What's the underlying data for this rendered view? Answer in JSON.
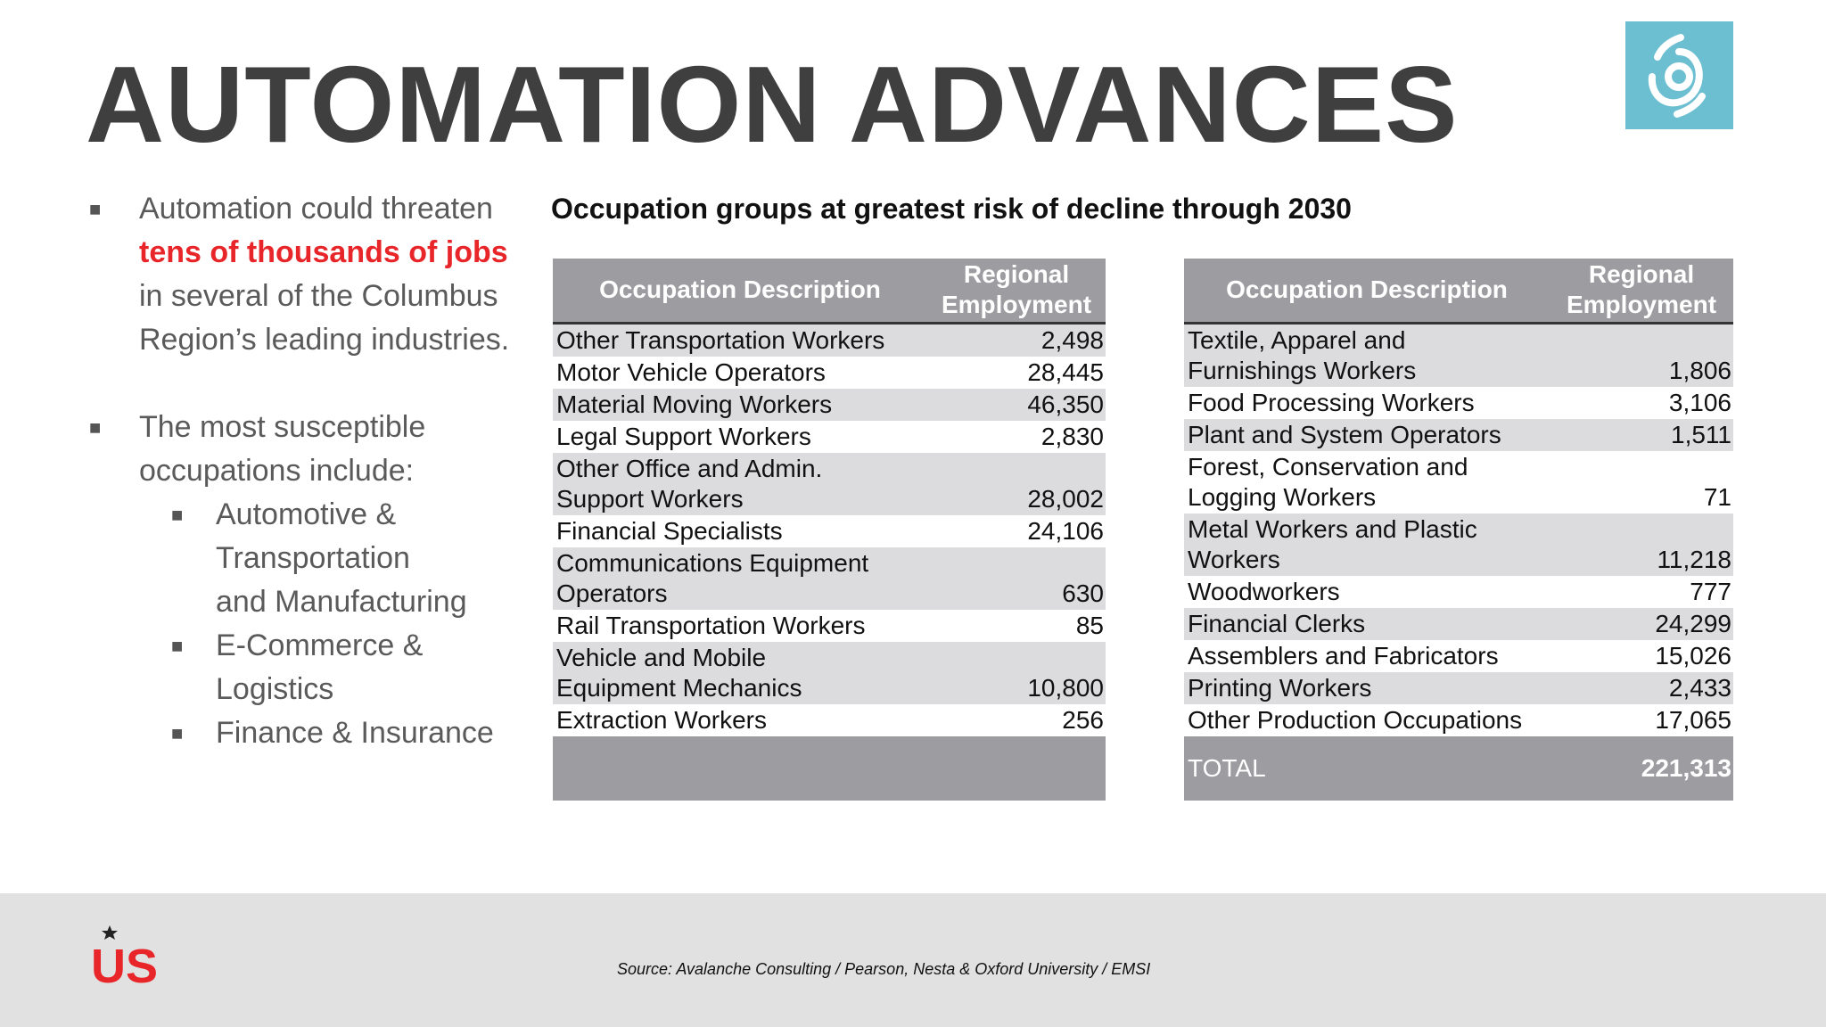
{
  "title": "AUTOMATION ADVANCES",
  "bullets": {
    "first": {
      "pre": "Automation could threaten",
      "highlight": "tens of thousands of jobs",
      "post_line1": "in several of the Columbus",
      "post_line2": "Region’s leading industries."
    },
    "second": {
      "line1": "The most susceptible",
      "line2": "occupations include:"
    },
    "sub_items": [
      {
        "lines": [
          "Automotive &",
          "Transportation",
          "and Manufacturing"
        ]
      },
      {
        "lines": [
          "E-Commerce &",
          "Logistics"
        ]
      },
      {
        "lines": [
          "Finance & Insurance"
        ]
      }
    ]
  },
  "table_title": "Occupation groups at greatest risk of decline through 2030",
  "table_headers": {
    "occupation": "Occupation Description",
    "employment_line1": "Regional",
    "employment_line2": "Employment"
  },
  "left_table": [
    {
      "lines": [
        "Other Transportation Workers"
      ],
      "value": "2,498"
    },
    {
      "lines": [
        "Motor Vehicle Operators"
      ],
      "value": "28,445"
    },
    {
      "lines": [
        "Material Moving Workers"
      ],
      "value": "46,350"
    },
    {
      "lines": [
        "Legal Support Workers"
      ],
      "value": "2,830"
    },
    {
      "lines": [
        "Other Office and Admin.",
        "Support Workers"
      ],
      "value": "28,002"
    },
    {
      "lines": [
        "Financial Specialists"
      ],
      "value": "24,106"
    },
    {
      "lines": [
        "Communications Equipment",
        "Operators"
      ],
      "value": "630"
    },
    {
      "lines": [
        "Rail Transportation Workers"
      ],
      "value": "85"
    },
    {
      "lines": [
        "Vehicle and Mobile",
        "Equipment Mechanics"
      ],
      "value": "10,800"
    },
    {
      "lines": [
        "Extraction Workers"
      ],
      "value": "256"
    }
  ],
  "right_table": [
    {
      "lines": [
        "Textile, Apparel and",
        "Furnishings Workers"
      ],
      "value": "1,806"
    },
    {
      "lines": [
        "Food Processing Workers"
      ],
      "value": "3,106"
    },
    {
      "lines": [
        "Plant and System Operators"
      ],
      "value": "1,511"
    },
    {
      "lines": [
        "Forest, Conservation and",
        "Logging Workers"
      ],
      "value": "71"
    },
    {
      "lines": [
        "Metal Workers and Plastic",
        "Workers"
      ],
      "value": "11,218"
    },
    {
      "lines": [
        "Woodworkers"
      ],
      "value": "777"
    },
    {
      "lines": [
        "Financial Clerks"
      ],
      "value": "24,299"
    },
    {
      "lines": [
        "Assemblers and Fabricators"
      ],
      "value": "15,026"
    },
    {
      "lines": [
        "Printing Workers"
      ],
      "value": "2,433"
    },
    {
      "lines": [
        "Other Production Occupations"
      ],
      "value": "17,065"
    }
  ],
  "total": {
    "label": "TOTAL",
    "value": "221,313"
  },
  "source": "Source: Avalanche Consulting / Pearson, Nesta & Oxford University / EMSI",
  "logo_text": "US",
  "icons": {
    "top_right": "spiral-logo-icon",
    "bottom_left": "us-logo-icon"
  },
  "colors": {
    "title": "#3f3f3f",
    "highlight": "#e8262a",
    "header": "#9d9ca1",
    "stripe": "#dcdcde",
    "logo_bg": "#6cbfd1"
  }
}
